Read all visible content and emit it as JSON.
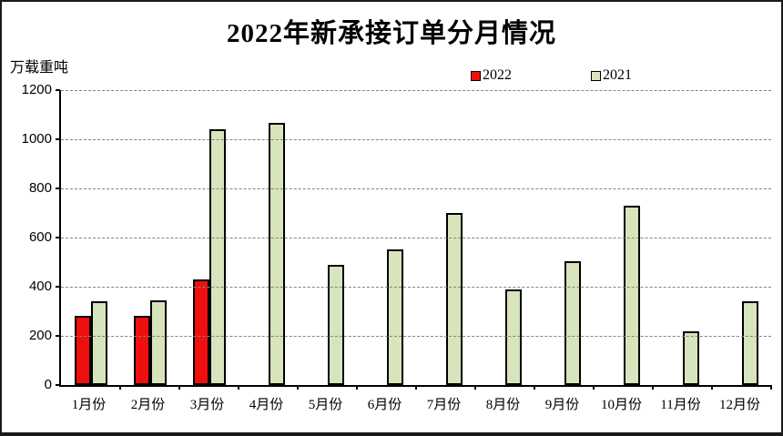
{
  "chart_data": {
    "type": "bar",
    "title": "2022年新承接订单分月情况",
    "ylabel": "万载重吨",
    "xlabel": "",
    "categories": [
      "1月份",
      "2月份",
      "3月份",
      "4月份",
      "5月份",
      "6月份",
      "7月份",
      "8月份",
      "9月份",
      "10月份",
      "11月份",
      "12月份"
    ],
    "series": [
      {
        "name": "2022",
        "color": "#ee0f0f",
        "values": [
          282,
          283,
          430,
          0,
          0,
          0,
          0,
          0,
          0,
          0,
          0,
          0
        ]
      },
      {
        "name": "2021",
        "color": "#d8e4bc",
        "values": [
          340,
          343,
          1040,
          1068,
          488,
          550,
          700,
          390,
          502,
          731,
          217,
          341
        ]
      }
    ],
    "ylim": [
      0,
      1200
    ],
    "ytick_step": 200,
    "yticks": [
      "0",
      "200",
      "400",
      "600",
      "800",
      "1000",
      "1200"
    ],
    "grid": "horizontal-dashed",
    "gridline_color": "#858585",
    "bar_outline_color": "#000000",
    "legend_position": "top-right-of-center",
    "background_color": "#ffffff"
  }
}
